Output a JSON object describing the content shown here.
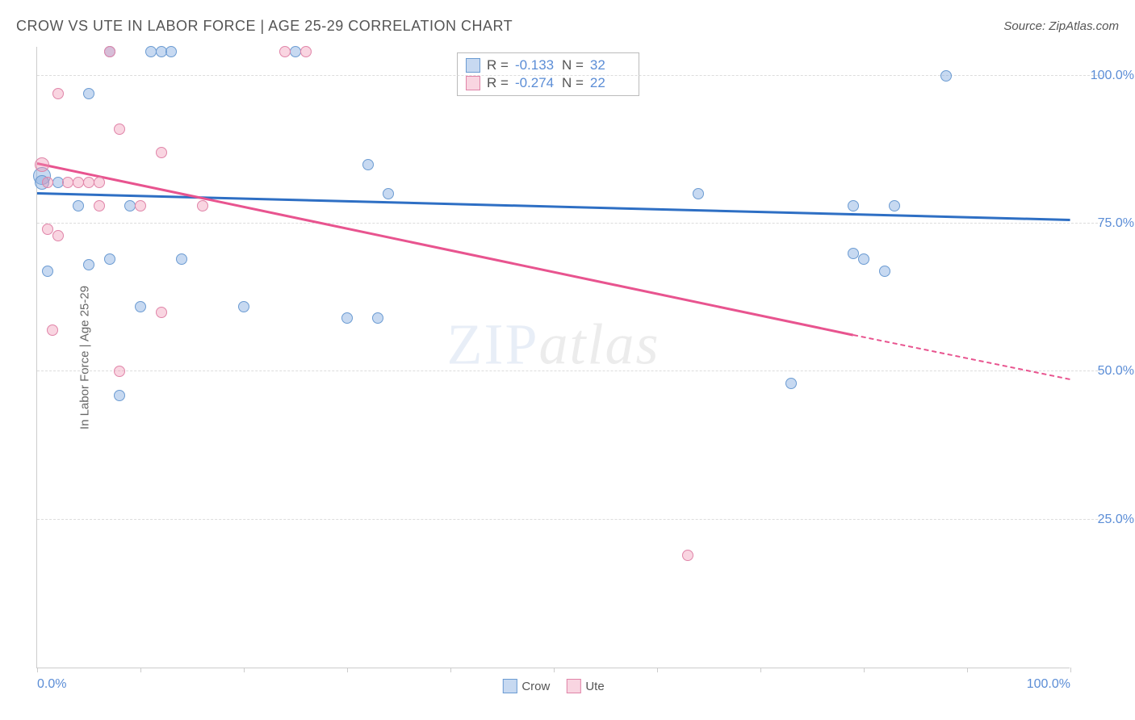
{
  "header": {
    "title": "CROW VS UTE IN LABOR FORCE | AGE 25-29 CORRELATION CHART",
    "source_prefix": "Source: ",
    "source_name": "ZipAtlas.com"
  },
  "chart": {
    "type": "scatter",
    "y_axis_label": "In Labor Force | Age 25-29",
    "xlim": [
      0,
      100
    ],
    "ylim": [
      0,
      105
    ],
    "x_ticks": [
      0,
      10,
      20,
      30,
      40,
      50,
      60,
      70,
      80,
      90,
      100
    ],
    "y_gridlines": [
      {
        "value": 25,
        "label": "25.0%"
      },
      {
        "value": 50,
        "label": "50.0%"
      },
      {
        "value": 75,
        "label": "75.0%"
      },
      {
        "value": 100,
        "label": "100.0%"
      }
    ],
    "x_tick_labels": [
      {
        "value": 0,
        "label": "0.0%"
      },
      {
        "value": 100,
        "label": "100.0%"
      }
    ],
    "grid_color": "#dddddd",
    "axis_color": "#cccccc",
    "background_color": "#ffffff",
    "watermark": {
      "zip": "ZIP",
      "atlas": "atlas"
    }
  },
  "series": [
    {
      "name": "Crow",
      "fill": "rgba(130,170,225,0.45)",
      "stroke": "#6b9bd2",
      "trend_color": "#2e6fc4",
      "r_value": "-0.133",
      "n_value": "32",
      "trend": {
        "x1": 0,
        "y1": 80,
        "x2": 100,
        "y2": 75.5
      },
      "points": [
        {
          "x": 0.5,
          "y": 83,
          "r": 11
        },
        {
          "x": 0.5,
          "y": 82,
          "r": 9
        },
        {
          "x": 1,
          "y": 67,
          "r": 7
        },
        {
          "x": 2,
          "y": 82,
          "r": 7
        },
        {
          "x": 4,
          "y": 78,
          "r": 7
        },
        {
          "x": 5,
          "y": 68,
          "r": 7
        },
        {
          "x": 5,
          "y": 97,
          "r": 7
        },
        {
          "x": 7,
          "y": 104,
          "r": 7
        },
        {
          "x": 7,
          "y": 69,
          "r": 7
        },
        {
          "x": 8,
          "y": 46,
          "r": 7
        },
        {
          "x": 9,
          "y": 78,
          "r": 7
        },
        {
          "x": 10,
          "y": 61,
          "r": 7
        },
        {
          "x": 11,
          "y": 104,
          "r": 7
        },
        {
          "x": 12,
          "y": 104,
          "r": 7
        },
        {
          "x": 13,
          "y": 104,
          "r": 7
        },
        {
          "x": 14,
          "y": 69,
          "r": 7
        },
        {
          "x": 20,
          "y": 61,
          "r": 7
        },
        {
          "x": 25,
          "y": 104,
          "r": 7
        },
        {
          "x": 30,
          "y": 59,
          "r": 7
        },
        {
          "x": 32,
          "y": 85,
          "r": 7
        },
        {
          "x": 33,
          "y": 59,
          "r": 7
        },
        {
          "x": 34,
          "y": 80,
          "r": 7
        },
        {
          "x": 64,
          "y": 80,
          "r": 7
        },
        {
          "x": 73,
          "y": 48,
          "r": 7
        },
        {
          "x": 79,
          "y": 70,
          "r": 7
        },
        {
          "x": 79,
          "y": 78,
          "r": 7
        },
        {
          "x": 80,
          "y": 69,
          "r": 7
        },
        {
          "x": 82,
          "y": 67,
          "r": 7
        },
        {
          "x": 83,
          "y": 78,
          "r": 7
        },
        {
          "x": 88,
          "y": 100,
          "r": 7
        }
      ]
    },
    {
      "name": "Ute",
      "fill": "rgba(240,150,180,0.40)",
      "stroke": "#e084a8",
      "trend_color": "#e8548f",
      "r_value": "-0.274",
      "n_value": "22",
      "trend": {
        "x1": 0,
        "y1": 85,
        "x2": 79,
        "y2": 56,
        "x3": 100,
        "y3": 48.5
      },
      "points": [
        {
          "x": 0.5,
          "y": 85,
          "r": 9
        },
        {
          "x": 1,
          "y": 74,
          "r": 7
        },
        {
          "x": 1,
          "y": 82,
          "r": 7
        },
        {
          "x": 1.5,
          "y": 57,
          "r": 7
        },
        {
          "x": 2,
          "y": 73,
          "r": 7
        },
        {
          "x": 2,
          "y": 97,
          "r": 7
        },
        {
          "x": 3,
          "y": 82,
          "r": 7
        },
        {
          "x": 4,
          "y": 82,
          "r": 7
        },
        {
          "x": 5,
          "y": 82,
          "r": 7
        },
        {
          "x": 6,
          "y": 82,
          "r": 7
        },
        {
          "x": 6,
          "y": 78,
          "r": 7
        },
        {
          "x": 7,
          "y": 104,
          "r": 7
        },
        {
          "x": 8,
          "y": 91,
          "r": 7
        },
        {
          "x": 8,
          "y": 50,
          "r": 7
        },
        {
          "x": 10,
          "y": 78,
          "r": 7
        },
        {
          "x": 12,
          "y": 87,
          "r": 7
        },
        {
          "x": 12,
          "y": 60,
          "r": 7
        },
        {
          "x": 16,
          "y": 78,
          "r": 7
        },
        {
          "x": 24,
          "y": 104,
          "r": 7
        },
        {
          "x": 26,
          "y": 104,
          "r": 7
        },
        {
          "x": 63,
          "y": 19,
          "r": 7
        }
      ]
    }
  ],
  "legend": {
    "r_label": "R =",
    "n_label": "N ="
  }
}
